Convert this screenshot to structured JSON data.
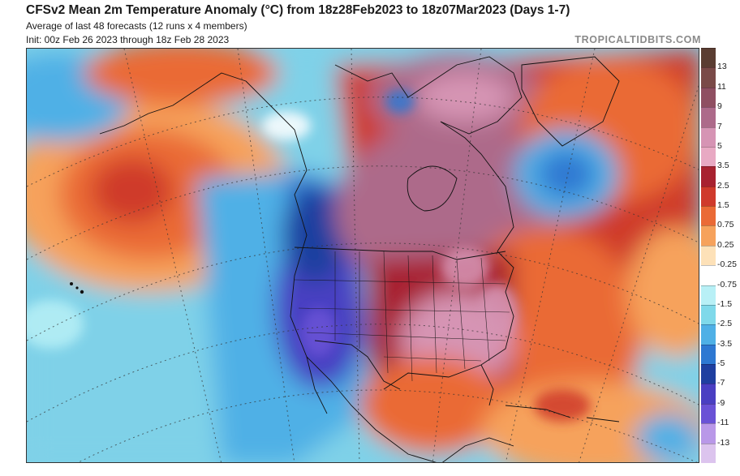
{
  "header": {
    "title": "CFSv2 Mean 2m Temperature Anomaly (°C) from 18z28Feb2023 to 18z07Mar2023 (Days 1-7)",
    "subtitle_line1": "Average of last 48 forecasts (12 runs x 4 members)",
    "subtitle_line2": "Init: 00z Feb 26 2023 through 18z Feb 28 2023",
    "brand": "TROPICALTIDBITS.COM"
  },
  "colorbar": {
    "labels": [
      "13",
      "11",
      "9",
      "7",
      "5",
      "3.5",
      "2.5",
      "1.5",
      "0.75",
      "0.25",
      "-0.25",
      "-0.75",
      "-1.5",
      "-2.5",
      "-3.5",
      "-5",
      "-7",
      "-9",
      "-11",
      "-13"
    ],
    "colors": [
      "#5a3d32",
      "#7a4a48",
      "#8f4f62",
      "#ad6a8a",
      "#d694b4",
      "#e8a9c3",
      "#a82230",
      "#cf3a2c",
      "#ea6a36",
      "#f6a25c",
      "#fde1b8",
      "#ffffff",
      "#b8f0f6",
      "#7fd9ea",
      "#4fb0e6",
      "#2e78d2",
      "#1f3fa0",
      "#4a3fc2",
      "#6a52d6",
      "#b998e8",
      "#dcc4ee"
    ]
  },
  "map": {
    "name": "North America and adjacent oceans temperature anomaly map",
    "features": [
      "state-borders",
      "country-borders",
      "lat-lon-graticule"
    ]
  }
}
